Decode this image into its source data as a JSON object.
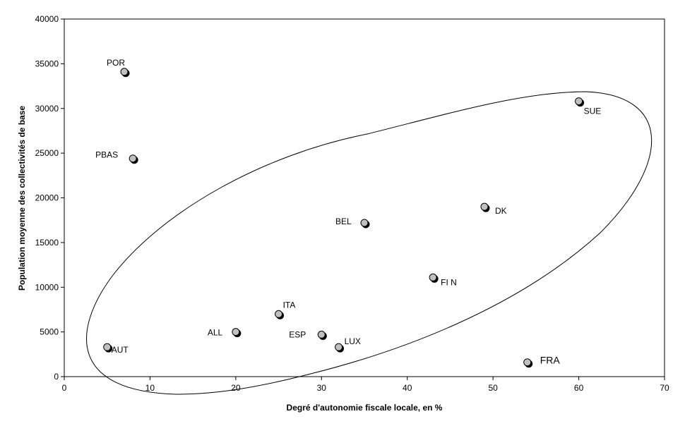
{
  "chart_data": {
    "type": "scatter",
    "title": "",
    "xlabel": "Degré d'autonomie fiscale locale, en %",
    "ylabel": "Population moyenne des collectivités de base",
    "xlim": [
      0,
      70
    ],
    "ylim": [
      0,
      40000
    ],
    "x_ticks": [
      "0",
      "10",
      "20",
      "30",
      "40",
      "50",
      "60",
      "70"
    ],
    "y_ticks": [
      "0",
      "5000",
      "10000",
      "15000",
      "20000",
      "25000",
      "30000",
      "35000",
      "40000"
    ],
    "grid": false,
    "points": [
      {
        "label": "POR",
        "x": 7,
        "y": 34100
      },
      {
        "label": "PBAS",
        "x": 8,
        "y": 24400
      },
      {
        "label": "AUT",
        "x": 5,
        "y": 3300
      },
      {
        "label": "ALL",
        "x": 20,
        "y": 5000
      },
      {
        "label": "ITA",
        "x": 25,
        "y": 7000
      },
      {
        "label": "ESP",
        "x": 30,
        "y": 4700
      },
      {
        "label": "LUX",
        "x": 32,
        "y": 3300
      },
      {
        "label": "BEL",
        "x": 35,
        "y": 17200
      },
      {
        "label": "FI N",
        "x": 43,
        "y": 11100
      },
      {
        "label": "DK",
        "x": 49,
        "y": 19000
      },
      {
        "label": "SUE",
        "x": 60,
        "y": 30800
      },
      {
        "label": "FRA",
        "x": 54,
        "y": 1600
      }
    ],
    "marker_color": "#c0c0c0",
    "marker_edge_color": "#000000",
    "annotation": "ellipse enclosing all points except POR, PBAS and FRA"
  }
}
